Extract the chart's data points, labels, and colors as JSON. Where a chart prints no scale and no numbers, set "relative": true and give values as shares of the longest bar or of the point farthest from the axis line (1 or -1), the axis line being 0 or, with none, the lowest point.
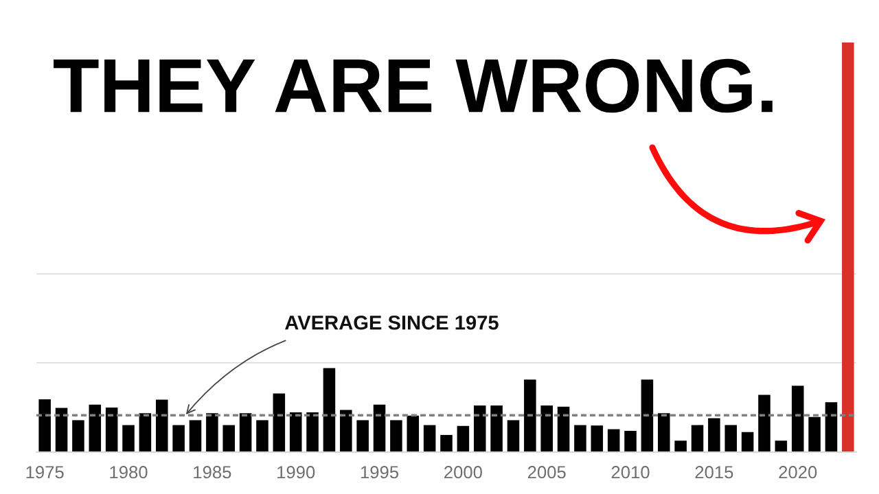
{
  "chart_data": {
    "type": "bar",
    "title": "THEY ARE WRONG.",
    "x": [
      1975,
      1976,
      1977,
      1978,
      1979,
      1980,
      1981,
      1982,
      1983,
      1984,
      1985,
      1986,
      1987,
      1988,
      1989,
      1990,
      1991,
      1992,
      1993,
      1994,
      1995,
      1996,
      1997,
      1998,
      1999,
      2000,
      2001,
      2002,
      2003,
      2004,
      2005,
      2006,
      2007,
      2008,
      2009,
      2010,
      2011,
      2012,
      2013,
      2014,
      2015,
      2016,
      2017,
      2018,
      2019,
      2020,
      2021,
      2022,
      2023
    ],
    "values": [
      0.129,
      0.108,
      0.078,
      0.116,
      0.109,
      0.066,
      0.095,
      0.128,
      0.066,
      0.078,
      0.095,
      0.066,
      0.095,
      0.078,
      0.143,
      0.097,
      0.097,
      0.205,
      0.103,
      0.078,
      0.116,
      0.078,
      0.089,
      0.066,
      0.042,
      0.064,
      0.114,
      0.114,
      0.078,
      0.177,
      0.114,
      0.111,
      0.066,
      0.065,
      0.056,
      0.052,
      0.177,
      0.095,
      0.028,
      0.066,
      0.083,
      0.066,
      0.049,
      0.14,
      0.028,
      0.162,
      0.086,
      0.122,
      1
    ],
    "colors": [
      "#000000",
      "#000000",
      "#000000",
      "#000000",
      "#000000",
      "#000000",
      "#000000",
      "#000000",
      "#000000",
      "#000000",
      "#000000",
      "#000000",
      "#000000",
      "#000000",
      "#000000",
      "#000000",
      "#000000",
      "#000000",
      "#000000",
      "#000000",
      "#000000",
      "#000000",
      "#000000",
      "#000000",
      "#000000",
      "#000000",
      "#000000",
      "#000000",
      "#000000",
      "#000000",
      "#000000",
      "#000000",
      "#000000",
      "#000000",
      "#000000",
      "#000000",
      "#000000",
      "#000000",
      "#000000",
      "#000000",
      "#000000",
      "#000000",
      "#000000",
      "#000000",
      "#000000",
      "#000000",
      "#000000",
      "#000000",
      "#d9302a"
    ],
    "relative": true,
    "xlim": [
      1974.5,
      2023.5
    ],
    "xticks": [
      1975,
      1980,
      1985,
      1990,
      1995,
      2000,
      2005,
      2010,
      2015,
      2020
    ],
    "tick_labels": "x",
    "ref_lines": [
      {
        "axis": "y",
        "value": 0.218,
        "color": "#d9d9d9",
        "line_style": "solid"
      },
      {
        "axis": "y",
        "value": 0.435,
        "color": "#d9d9d9",
        "line_style": "solid"
      },
      {
        "axis": "y",
        "value": 0.09,
        "color": "#808080",
        "line_style": "dashed"
      }
    ],
    "annotations": [
      {
        "text": "AVERAGE SINCE 1975",
        "x": 1983.4,
        "y": 0.09
      }
    ]
  }
}
